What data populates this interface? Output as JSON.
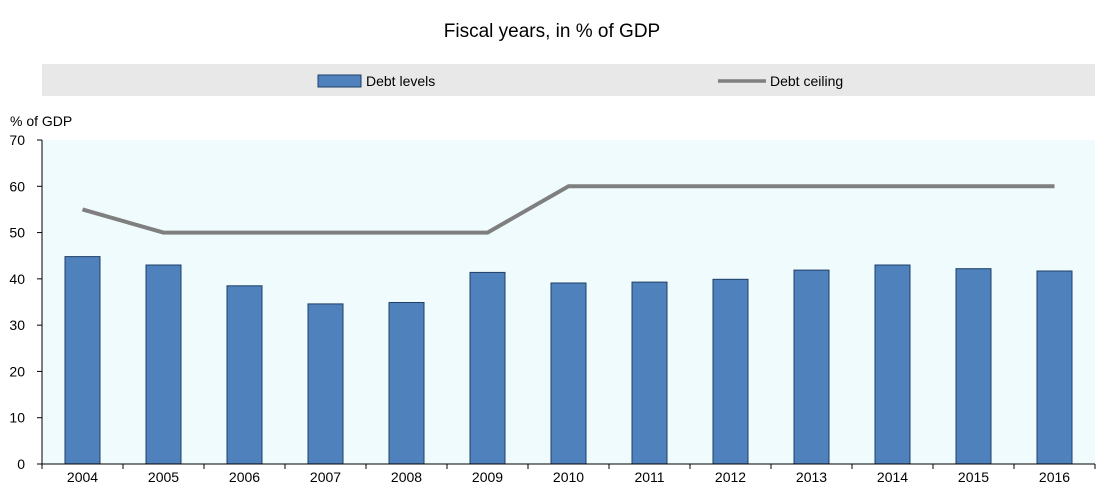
{
  "chart_data": {
    "type": "bar",
    "title": "Fiscal years, in % of GDP",
    "ylabel": "% of GDP",
    "xlabel": "",
    "ylim": [
      0,
      70
    ],
    "yticks": [
      0,
      10,
      20,
      30,
      40,
      50,
      60,
      70
    ],
    "grid": false,
    "legend_position": "top",
    "categories": [
      "2004",
      "2005",
      "2006",
      "2007",
      "2008",
      "2009",
      "2010",
      "2011",
      "2012",
      "2013",
      "2014",
      "2015",
      "2016"
    ],
    "series": [
      {
        "name": "Debt levels",
        "type": "bar",
        "color": "#4f81bd",
        "values": [
          44.8,
          43.0,
          38.5,
          34.6,
          34.9,
          41.4,
          39.1,
          39.3,
          39.9,
          41.9,
          43.0,
          42.2,
          41.7
        ]
      },
      {
        "name": "Debt ceiling",
        "type": "line",
        "color": "#7f7f7f",
        "values": [
          55,
          50,
          50,
          50,
          50,
          50,
          60,
          60,
          60,
          60,
          60,
          60,
          60
        ]
      }
    ],
    "colors": {
      "plot_background": "#f0fbfd",
      "legend_background": "#e8e8e8",
      "axis": "#000000"
    }
  }
}
